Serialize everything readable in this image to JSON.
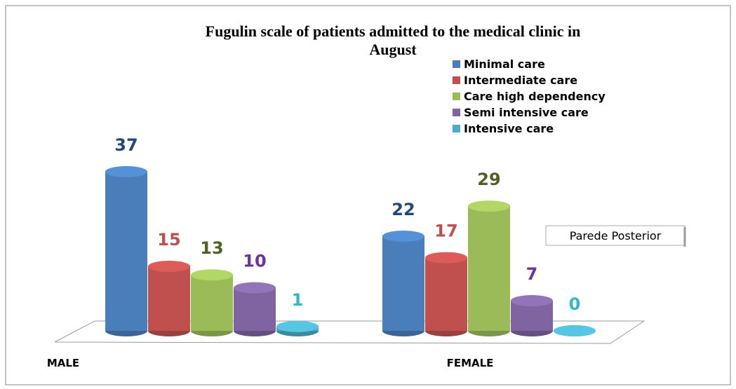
{
  "chart_data": {
    "type": "bar",
    "title": "Fugulin scale of patients admitted to the medical clinic in August",
    "categories": [
      "MALE",
      "FEMALE"
    ],
    "series": [
      {
        "name": "Minimal care",
        "color": "#4a7ebb",
        "label_color": "#1f497d",
        "values": [
          37,
          22
        ]
      },
      {
        "name": "Intermediate care",
        "color": "#c0504d",
        "label_color": "#c0504d",
        "values": [
          15,
          17
        ]
      },
      {
        "name": "Care high dependency",
        "color": "#9bbb59",
        "label_color": "#4f6228",
        "values": [
          13,
          29
        ]
      },
      {
        "name": "Semi intensive care",
        "color": "#8064a2",
        "label_color": "#7030a0",
        "values": [
          10,
          7
        ]
      },
      {
        "name": "Intensive care",
        "color": "#4bacc6",
        "label_color": "#31b6d0",
        "values": [
          1,
          0
        ]
      }
    ],
    "annotation": "Parede Posterior",
    "legend": "top-right"
  }
}
